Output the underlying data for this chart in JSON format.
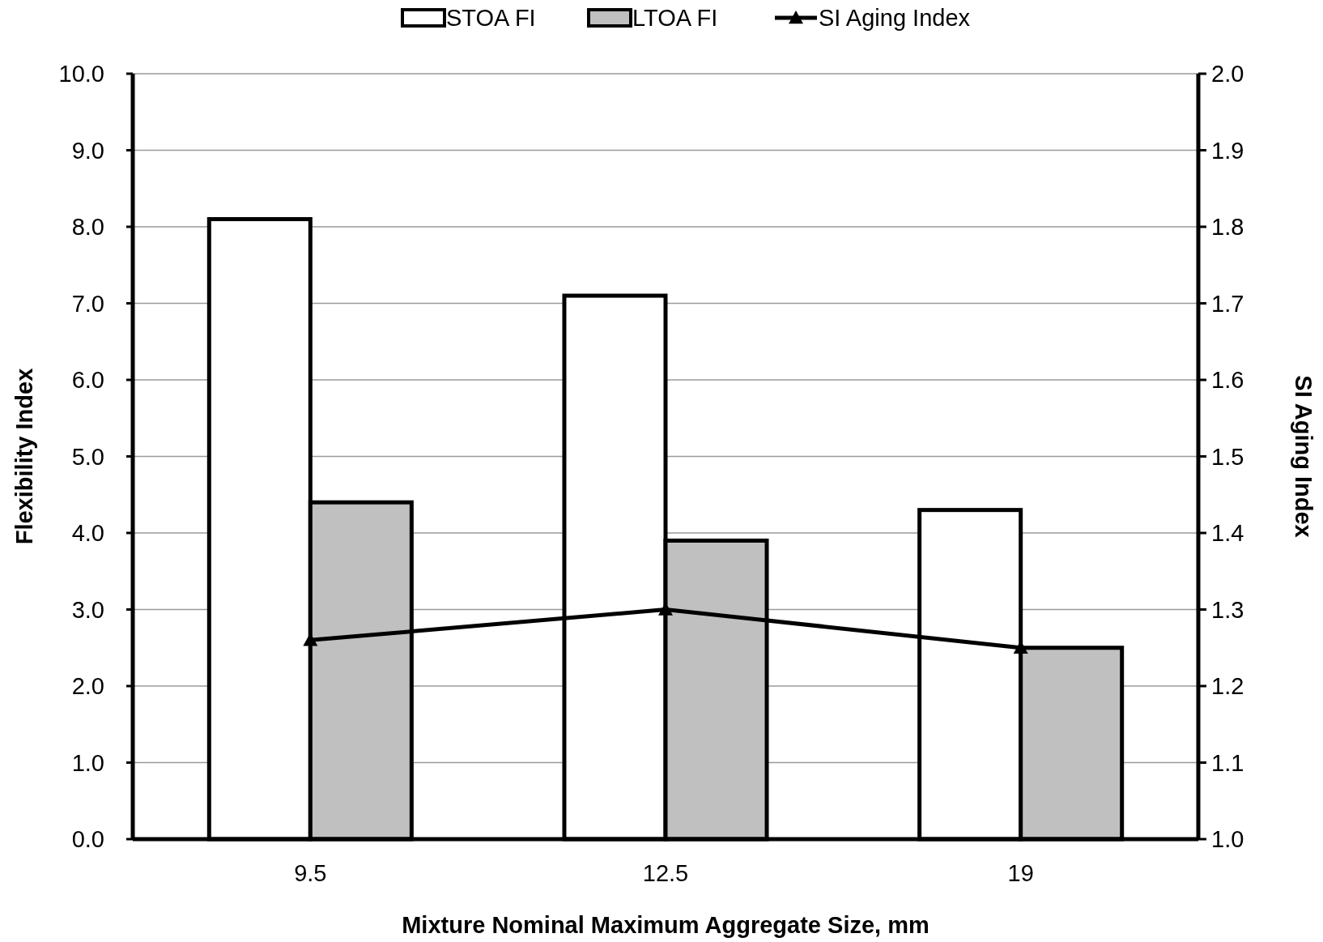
{
  "chart_data": {
    "type": "bar",
    "xlabel": "Mixture Nominal  Maximum  Aggregate Size, mm",
    "ylabel": "Flexibility Index",
    "y2label": "SI Aging Index",
    "categories": [
      "9.5",
      "12.5",
      "19"
    ],
    "series": [
      {
        "name": "STOA FI",
        "color": "#ffffff",
        "values": [
          8.1,
          7.1,
          4.3
        ]
      },
      {
        "name": "LTOA FI",
        "color": "#c0c0c0",
        "values": [
          4.4,
          3.9,
          2.5
        ]
      },
      {
        "name": "SI Aging Index",
        "type": "line",
        "axis": "y2",
        "color": "#000000",
        "marker": "triangle",
        "values": [
          1.26,
          1.3,
          1.25
        ]
      }
    ],
    "ylim": [
      0,
      10
    ],
    "yticks": [
      {
        "value": 0,
        "label": "0.0"
      },
      {
        "value": 1,
        "label": "1.0"
      },
      {
        "value": 2,
        "label": "2.0"
      },
      {
        "value": 3,
        "label": "3.0"
      },
      {
        "value": 4,
        "label": "4.0"
      },
      {
        "value": 5,
        "label": "5.0"
      },
      {
        "value": 6,
        "label": "6.0"
      },
      {
        "value": 7,
        "label": "7.0"
      },
      {
        "value": 8,
        "label": "8.0"
      },
      {
        "value": 9,
        "label": "9.0"
      },
      {
        "value": 10,
        "label": "10.0"
      }
    ],
    "y2lim": [
      1,
      2
    ],
    "y2ticks": [
      {
        "value": 1,
        "label": "1.0"
      },
      {
        "value": 1.1,
        "label": "1.1"
      },
      {
        "value": 1.2,
        "label": "1.2"
      },
      {
        "value": 1.3,
        "label": "1.3"
      },
      {
        "value": 1.4,
        "label": "1.4"
      },
      {
        "value": 1.5,
        "label": "1.5"
      },
      {
        "value": 1.6,
        "label": "1.6"
      },
      {
        "value": 1.7,
        "label": "1.7"
      },
      {
        "value": 1.8,
        "label": "1.8"
      },
      {
        "value": 1.9,
        "label": "1.9"
      },
      {
        "value": 2,
        "label": "2.0"
      }
    ],
    "grid": "y",
    "legend": "top"
  }
}
